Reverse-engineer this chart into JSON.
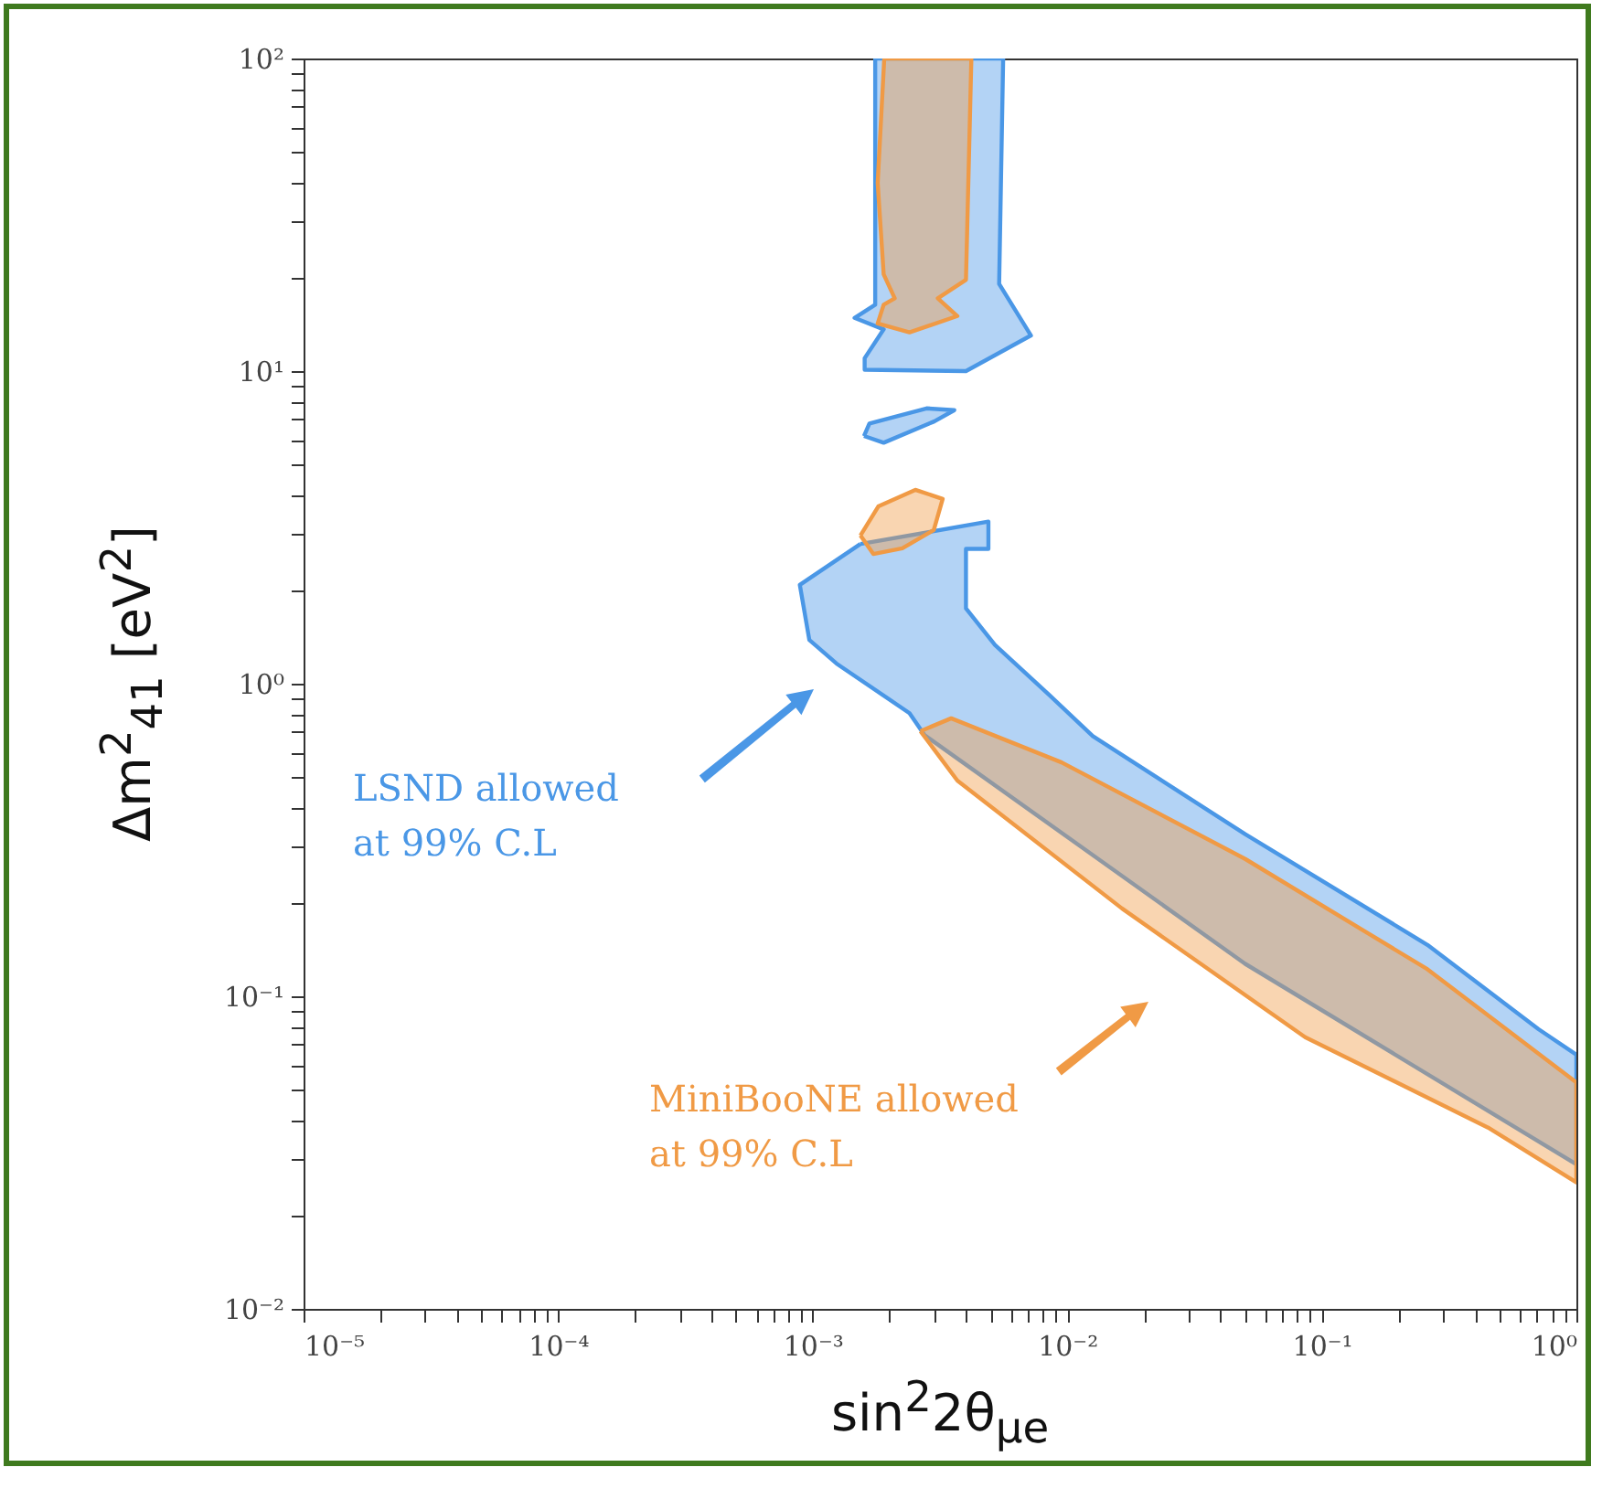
{
  "chart_data": {
    "type": "area",
    "xlabel": "sin$^{2}$2θ$_{μe}$",
    "ylabel": "Δm$^{2}$$_{41}$  [eV$^{2}$]",
    "log": "xy",
    "xlim": [
      1e-05,
      1
    ],
    "ylim": [
      0.01,
      100
    ],
    "xticks": [
      {
        "value": 1e-05,
        "label": "10⁻⁵"
      },
      {
        "value": 2e-05,
        "label": null
      },
      {
        "value": 3e-05,
        "label": null
      },
      {
        "value": 4e-05,
        "label": null
      },
      {
        "value": 5e-05,
        "label": null
      },
      {
        "value": 6e-05,
        "label": null
      },
      {
        "value": 7e-05,
        "label": null
      },
      {
        "value": 8e-05,
        "label": null
      },
      {
        "value": 9e-05,
        "label": null
      },
      {
        "value": 0.0001,
        "label": "10⁻⁴"
      },
      {
        "value": 0.0002,
        "label": null
      },
      {
        "value": 0.0003,
        "label": null
      },
      {
        "value": 0.0004,
        "label": null
      },
      {
        "value": 0.0005,
        "label": null
      },
      {
        "value": 0.0006,
        "label": null
      },
      {
        "value": 0.0007,
        "label": null
      },
      {
        "value": 0.0008,
        "label": null
      },
      {
        "value": 0.0009,
        "label": null
      },
      {
        "value": 0.001,
        "label": "10⁻³"
      },
      {
        "value": 0.002,
        "label": null
      },
      {
        "value": 0.003,
        "label": null
      },
      {
        "value": 0.004,
        "label": null
      },
      {
        "value": 0.005,
        "label": null
      },
      {
        "value": 0.006,
        "label": null
      },
      {
        "value": 0.007,
        "label": null
      },
      {
        "value": 0.008,
        "label": null
      },
      {
        "value": 0.009,
        "label": null
      },
      {
        "value": 0.01,
        "label": "10⁻²"
      },
      {
        "value": 0.02,
        "label": null
      },
      {
        "value": 0.03,
        "label": null
      },
      {
        "value": 0.04,
        "label": null
      },
      {
        "value": 0.05,
        "label": null
      },
      {
        "value": 0.06,
        "label": null
      },
      {
        "value": 0.07,
        "label": null
      },
      {
        "value": 0.08,
        "label": null
      },
      {
        "value": 0.09,
        "label": null
      },
      {
        "value": 0.1,
        "label": "10⁻¹"
      },
      {
        "value": 0.2,
        "label": null
      },
      {
        "value": 0.3,
        "label": null
      },
      {
        "value": 0.4,
        "label": null
      },
      {
        "value": 0.5,
        "label": null
      },
      {
        "value": 0.6,
        "label": null
      },
      {
        "value": 0.7,
        "label": null
      },
      {
        "value": 0.8,
        "label": null
      },
      {
        "value": 0.9,
        "label": null
      },
      {
        "value": 1,
        "label": "10⁰"
      }
    ],
    "yticks": [
      {
        "value": 0.01,
        "label": "10⁻²"
      },
      {
        "value": 0.02,
        "label": null
      },
      {
        "value": 0.03,
        "label": null
      },
      {
        "value": 0.04,
        "label": null
      },
      {
        "value": 0.05,
        "label": null
      },
      {
        "value": 0.06,
        "label": null
      },
      {
        "value": 0.07,
        "label": null
      },
      {
        "value": 0.08,
        "label": null
      },
      {
        "value": 0.09,
        "label": null
      },
      {
        "value": 0.1,
        "label": "10⁻¹"
      },
      {
        "value": 0.2,
        "label": null
      },
      {
        "value": 0.3,
        "label": null
      },
      {
        "value": 0.4,
        "label": null
      },
      {
        "value": 0.5,
        "label": null
      },
      {
        "value": 0.6,
        "label": null
      },
      {
        "value": 0.7,
        "label": null
      },
      {
        "value": 0.8,
        "label": null
      },
      {
        "value": 0.9,
        "label": null
      },
      {
        "value": 1,
        "label": "10⁰"
      },
      {
        "value": 2,
        "label": null
      },
      {
        "value": 3,
        "label": null
      },
      {
        "value": 4,
        "label": null
      },
      {
        "value": 5,
        "label": null
      },
      {
        "value": 6,
        "label": null
      },
      {
        "value": 7,
        "label": null
      },
      {
        "value": 8,
        "label": null
      },
      {
        "value": 9,
        "label": null
      },
      {
        "value": 10,
        "label": "10¹"
      },
      {
        "value": 20,
        "label": null
      },
      {
        "value": 30,
        "label": null
      },
      {
        "value": 40,
        "label": null
      },
      {
        "value": 50,
        "label": null
      },
      {
        "value": 60,
        "label": null
      },
      {
        "value": 70,
        "label": null
      },
      {
        "value": 80,
        "label": null
      },
      {
        "value": 90,
        "label": null
      },
      {
        "value": 100,
        "label": "10²"
      }
    ],
    "grid": false,
    "marker": "none",
    "series": [
      {
        "type": "area",
        "color": "#4a97e6",
        "x": [
          0.00176,
          0.0056,
          0.0054,
          0.0072,
          0.004,
          0.0016,
          0.0016,
          0.0019,
          0.00146,
          0.00176,
          0.00176,
          0.00176,
          null,
          0.00159,
          0.00167,
          0.0028,
          0.0036,
          0.003,
          0.0019,
          0.00159,
          null,
          0.00154,
          0.0049,
          0.0049,
          0.004,
          0.004,
          0.0052,
          0.0085,
          0.0126,
          0.05,
          0.26,
          0.71,
          1,
          1,
          0.05,
          0.00275,
          0.0024,
          0.00124,
          0.00097,
          0.00089,
          0.00154
        ],
        "values": [
          100,
          100,
          19,
          13,
          10,
          10.1,
          11,
          13.6,
          14.8,
          16.3,
          47,
          100,
          null,
          6.2,
          6.8,
          7.6,
          7.5,
          6.9,
          5.9,
          6.2,
          null,
          2.8,
          3.3,
          2.7,
          2.7,
          1.74,
          1.33,
          0.92,
          0.68,
          0.33,
          0.146,
          0.0785,
          0.065,
          0.029,
          0.127,
          0.685,
          0.805,
          1.16,
          1.38,
          2.07,
          2.8
        ]
      },
      {
        "type": "area",
        "color": "#f09a45",
        "x": [
          0.00191,
          0.0042,
          0.004,
          0.0031,
          0.0037,
          0.0024,
          0.0018,
          0.0019,
          0.0021,
          0.0019,
          0.0018,
          0.00191,
          null,
          0.00154,
          0.00181,
          0.00253,
          0.00324,
          0.00299,
          0.00225,
          0.00173,
          0.00154,
          null,
          0.00265,
          0.0035,
          0.0095,
          0.05,
          0.26,
          1,
          1,
          0.45,
          0.086,
          0.0164,
          0.0037,
          0.00265
        ],
        "values": [
          100,
          100,
          19.6,
          17.1,
          15,
          13.3,
          14.2,
          16.3,
          17.1,
          20.4,
          40,
          100,
          null,
          2.98,
          3.69,
          4.17,
          3.9,
          3.1,
          2.71,
          2.6,
          2.98,
          null,
          0.705,
          0.775,
          0.56,
          0.275,
          0.122,
          0.053,
          0.0254,
          0.038,
          0.074,
          0.191,
          0.49,
          0.705
        ]
      }
    ],
    "annotations": [
      "LSND allowed\nat 99% C.L",
      "MiniBooNE allowed\nat 99% C.L"
    ]
  }
}
